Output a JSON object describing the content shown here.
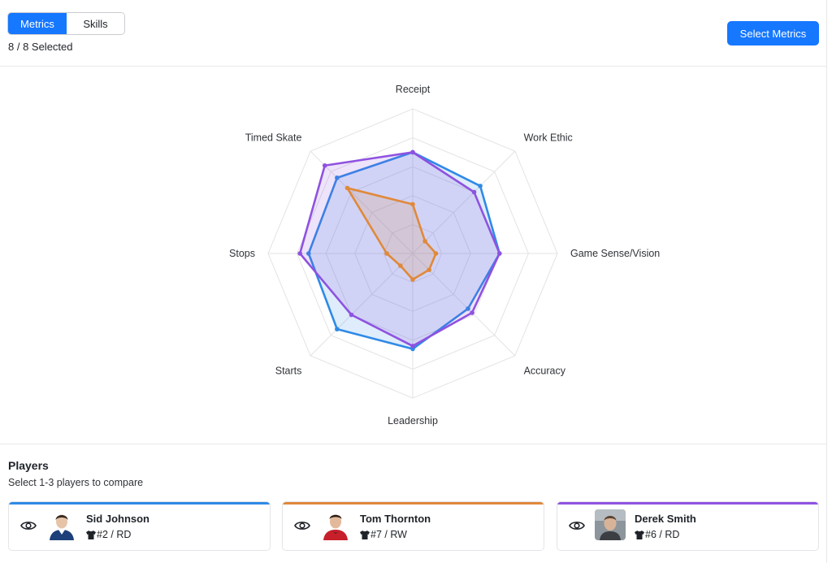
{
  "header": {
    "tabs": [
      {
        "label": "Metrics",
        "active": true
      },
      {
        "label": "Skills",
        "active": false
      }
    ],
    "selected_count": "8 / 8 Selected",
    "select_metrics_label": "Select Metrics"
  },
  "chart_data": {
    "type": "radar",
    "axes": [
      "Receipt",
      "Work Ethic",
      "Game Sense/Vision",
      "Accuracy",
      "Leadership",
      "Starts",
      "Stops",
      "Timed Skate"
    ],
    "rmax": 5,
    "rings": 5,
    "series": [
      {
        "name": "Sid Johnson",
        "color": "#2f8ae6",
        "values": [
          3.5,
          3.3,
          3.0,
          2.7,
          3.3,
          3.7,
          3.6,
          3.7
        ]
      },
      {
        "name": "Derek Smith",
        "color": "#8f52e0",
        "values": [
          3.5,
          3.0,
          3.0,
          2.9,
          3.2,
          3.0,
          3.9,
          4.3
        ]
      },
      {
        "name": "Tom Thornton",
        "color": "#e0893a",
        "values": [
          1.7,
          0.6,
          0.8,
          0.8,
          0.9,
          0.6,
          0.9,
          3.2
        ]
      }
    ]
  },
  "players": {
    "title": "Players",
    "subtitle": "Select 1-3 players to compare",
    "items": [
      {
        "name": "Sid Johnson",
        "info": "#2 / RD",
        "color": "#2f8ae6",
        "icon": "eye-icon"
      },
      {
        "name": "Tom Thornton",
        "info": "#7 / RW",
        "color": "#e0893a",
        "icon": "eye-icon"
      },
      {
        "name": "Derek Smith",
        "info": "#6 / RD",
        "color": "#8f52e0",
        "icon": "eye-icon"
      }
    ]
  }
}
